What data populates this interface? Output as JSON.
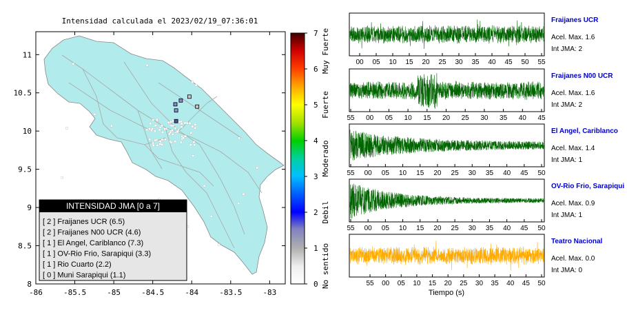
{
  "map": {
    "title": "Intensidad calculada el 2023/02/19_07:36:01",
    "x_ticks": [
      "-86",
      "-85.5",
      "-85",
      "-84.5",
      "-84",
      "-83.5",
      "-83"
    ],
    "y_ticks": [
      "8",
      "8.5",
      "9",
      "9.5",
      "10",
      "10.5",
      "11"
    ],
    "xlim": [
      -86,
      -82.8
    ],
    "ylim": [
      8,
      11.3
    ],
    "land_color": "#b2ebeb",
    "stations": [
      {
        "lon": -84.21,
        "lat": 10.35,
        "color": "#8888cc"
      },
      {
        "lon": -84.14,
        "lat": 10.4,
        "color": "#8888cc"
      },
      {
        "lon": -84.03,
        "lat": 10.45,
        "color": "#c8c8c8"
      },
      {
        "lon": -84.2,
        "lat": 10.27,
        "color": "#9090d0"
      },
      {
        "lon": -84.2,
        "lat": 10.13,
        "color": "#5050a8"
      },
      {
        "lon": -83.93,
        "lat": 10.32,
        "color": "#c8c8c8"
      }
    ]
  },
  "legend": {
    "title": "INTENSIDAD JMA [0 a 7]",
    "items": [
      "[ 2 ]  Fraijanes UCR (6.5)",
      "[ 2 ]  Fraijanes N00 UCR (4.6)",
      "[ 1 ]  El Angel, Cariblanco (7.3)",
      "[ 1 ]  OV-Rio Frio, Sarapiqui (3.3)",
      "[ 1 ]  Rio Cuarto (2.2)",
      "[ 0 ]  Muni Sarapiqui (1.1)"
    ]
  },
  "colorbar": {
    "ticks": [
      "0",
      "1",
      "2",
      "3",
      "4",
      "5",
      "6",
      "7"
    ],
    "labels": [
      "No sentido",
      "Debil",
      "Moderado",
      "Fuerte",
      "Muy Fuerte"
    ],
    "range": [
      0,
      7
    ]
  },
  "chart_data": {
    "type": "line",
    "xlabel": "Tiempo (s)",
    "panels": [
      {
        "name": "Fraijanes UCR",
        "accel": "Acel. Max. 1.6",
        "int": "Int JMA: 2",
        "color": "#006400",
        "ticks": [
          "00",
          "05",
          "10",
          "15",
          "20",
          "25",
          "30",
          "35",
          "40",
          "45",
          "50",
          "55"
        ],
        "style": "steady"
      },
      {
        "name": "Fraijanes N00 UCR",
        "accel": "Acel. Max. 1.6",
        "int": "Int JMA: 2",
        "color": "#006400",
        "ticks": [
          "55",
          "00",
          "05",
          "10",
          "15",
          "20",
          "25",
          "30",
          "35",
          "40",
          "45"
        ],
        "style": "burst"
      },
      {
        "name": "El Angel, Cariblanco",
        "accel": "Acel. Max. 1.4",
        "int": "Int JMA: 1",
        "color": "#006400",
        "ticks": [
          "55",
          "00",
          "05",
          "10",
          "15",
          "20",
          "25",
          "30",
          "35",
          "40",
          "45",
          "50"
        ],
        "style": "decay"
      },
      {
        "name": "OV-Rio Frio, Sarapiqui",
        "accel": "Acel. Max. 0.9",
        "int": "Int JMA: 1",
        "color": "#006400",
        "ticks": [
          "55",
          "00",
          "05",
          "10",
          "15",
          "20",
          "25",
          "30",
          "35",
          "40",
          "45",
          "50"
        ],
        "style": "decay2"
      },
      {
        "name": "Teatro Nacional",
        "accel": "Acel. Max. 0.0",
        "int": "Int JMA: 0",
        "color": "#ffaa00",
        "ticks": [
          "55",
          "00",
          "05",
          "10",
          "15",
          "20",
          "25",
          "30",
          "35",
          "40",
          "45",
          "50"
        ],
        "style": "steady"
      }
    ]
  }
}
